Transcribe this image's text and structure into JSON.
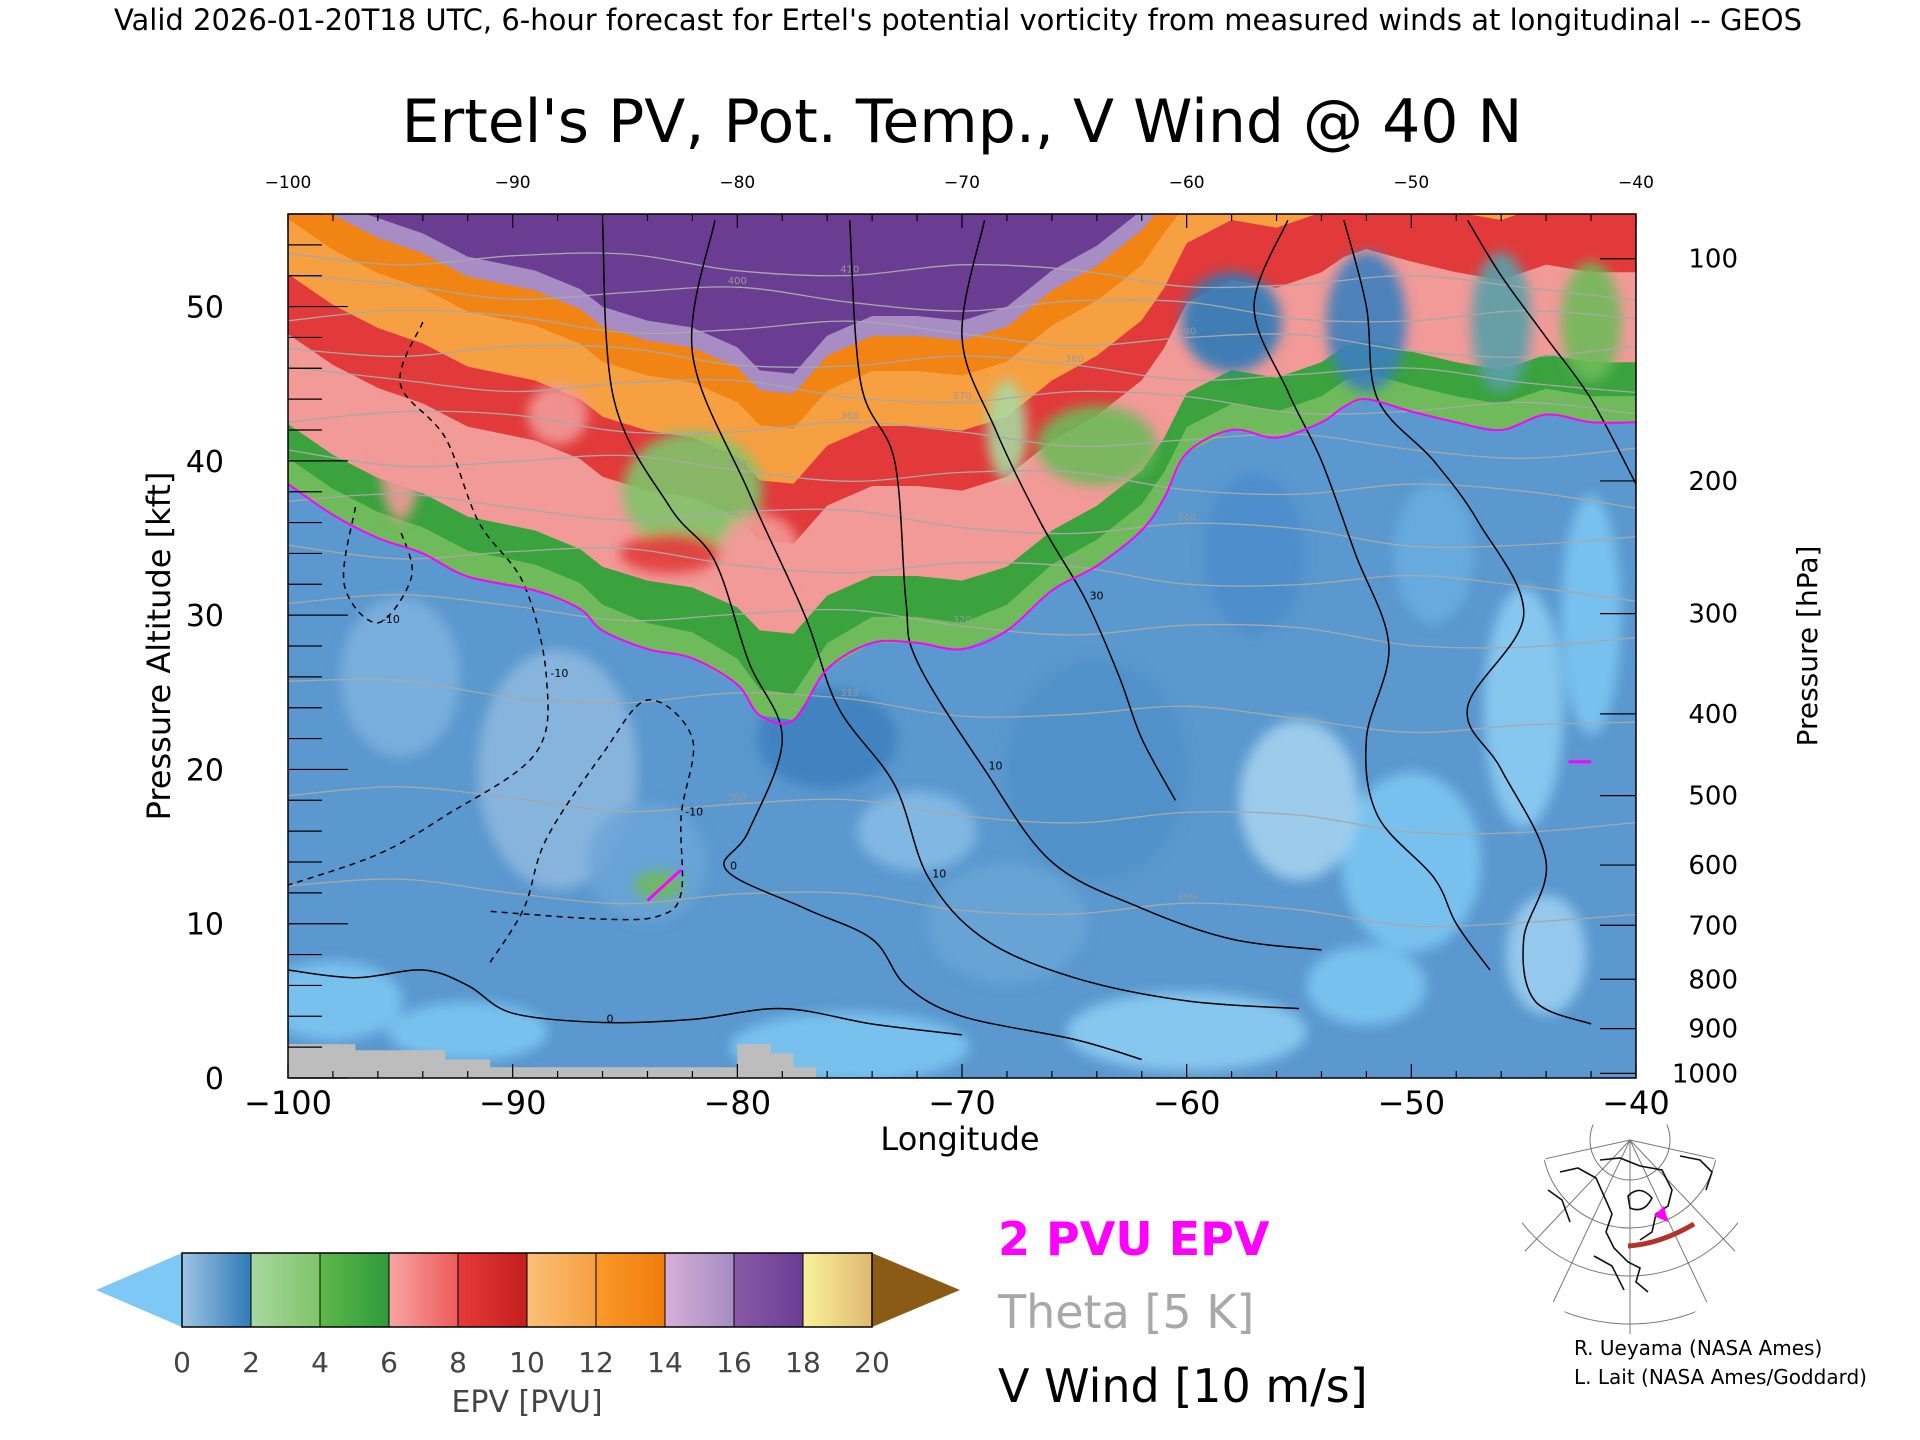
{
  "header": {
    "valid_line": "Valid 2026-01-20T18 UTC, 6-hour forecast for Ertel's potential vorticity from measured winds at longitudinal -- GEOS"
  },
  "chart_data": {
    "type": "heatmap",
    "title": "Ertel's PV, Pot. Temp., V Wind @ 40 N",
    "xlabel": "Longitude",
    "ylabel_left": "Pressure Altitude [kft]",
    "ylabel_right": "Pressure [hPa]",
    "xlim": [
      -100,
      -40
    ],
    "ylim": [
      0,
      56
    ],
    "x_ticks": [
      -100,
      -90,
      -80,
      -70,
      -60,
      -50,
      -40
    ],
    "x_tick_labels": [
      "−100",
      "−90",
      "−80",
      "−70",
      "−60",
      "−50",
      "−40"
    ],
    "x_top_tick_labels": [
      "−100",
      "−90",
      "−80",
      "−70",
      "−60",
      "−50",
      "−40"
    ],
    "y_left_ticks": [
      0,
      10,
      20,
      30,
      40,
      50
    ],
    "y_left_tick_labels": [
      "0",
      "10",
      "20",
      "30",
      "40",
      "50"
    ],
    "y_right_ticks": [
      {
        "label": "100",
        "kft": 53.1
      },
      {
        "label": "200",
        "kft": 38.7
      },
      {
        "label": "300",
        "kft": 30.1
      },
      {
        "label": "400",
        "kft": 23.6
      },
      {
        "label": "500",
        "kft": 18.3
      },
      {
        "label": "600",
        "kft": 13.8
      },
      {
        "label": "700",
        "kft": 9.9
      },
      {
        "label": "800",
        "kft": 6.4
      },
      {
        "label": "900",
        "kft": 3.2
      },
      {
        "label": "1000",
        "kft": 0.3
      }
    ],
    "colorbar": {
      "label": "EPV [PVU]",
      "ticks": [
        "0",
        "2",
        "4",
        "6",
        "8",
        "10",
        "12",
        "14",
        "16",
        "18",
        "20"
      ],
      "min_color": "#7ec8f5",
      "max_color": "#8b5a14",
      "bins": [
        {
          "from": 0,
          "to": 2,
          "colors": [
            "#9fc4e3",
            "#2f7ab8"
          ]
        },
        {
          "from": 2,
          "to": 4,
          "colors": [
            "#a8d8a0",
            "#7fc46a"
          ]
        },
        {
          "from": 4,
          "to": 6,
          "colors": [
            "#5fb84a",
            "#2e9a3a"
          ]
        },
        {
          "from": 6,
          "to": 8,
          "colors": [
            "#f7a6a3",
            "#ee5a5a"
          ]
        },
        {
          "from": 8,
          "to": 10,
          "colors": [
            "#e63a3a",
            "#c41e1e"
          ]
        },
        {
          "from": 10,
          "to": 12,
          "colors": [
            "#fbc078",
            "#f7a042"
          ]
        },
        {
          "from": 12,
          "to": 14,
          "colors": [
            "#fb9a2a",
            "#f07c0c"
          ]
        },
        {
          "from": 14,
          "to": 16,
          "colors": [
            "#d6b0d8",
            "#a68cc4"
          ]
        },
        {
          "from": 16,
          "to": 18,
          "colors": [
            "#8a5aa8",
            "#6a3c92"
          ]
        },
        {
          "from": 18,
          "to": 20,
          "colors": [
            "#f8f29a",
            "#e0b870"
          ]
        }
      ]
    },
    "legend": [
      {
        "label": "2 PVU EPV",
        "color": "#ff00ff"
      },
      {
        "label": "Theta [5 K]",
        "color": "#a8a8a8"
      },
      {
        "label": "V Wind [10 m/s]",
        "color": "#000000"
      }
    ],
    "fields": {
      "tropopause_2pvu": [
        [
          -100,
          38.5
        ],
        [
          -98,
          36.5
        ],
        [
          -96,
          35
        ],
        [
          -94,
          34
        ],
        [
          -92,
          32.5
        ],
        [
          -89,
          31.6
        ],
        [
          -87,
          30.4
        ],
        [
          -86,
          29
        ],
        [
          -84,
          27.8
        ],
        [
          -82,
          27.2
        ],
        [
          -80,
          25.5
        ],
        [
          -79,
          23.5
        ],
        [
          -77.5,
          23.2
        ],
        [
          -76,
          26.5
        ],
        [
          -74,
          28.2
        ],
        [
          -72,
          28.2
        ],
        [
          -70,
          27.8
        ],
        [
          -68,
          29
        ],
        [
          -66,
          31.6
        ],
        [
          -64,
          33.2
        ],
        [
          -62,
          35.5
        ],
        [
          -61,
          37.6
        ],
        [
          -60,
          40.5
        ],
        [
          -58,
          42
        ],
        [
          -56,
          41.5
        ],
        [
          -54,
          42.5
        ],
        [
          -53,
          43.5
        ],
        [
          -52,
          44
        ],
        [
          -50,
          43.2
        ],
        [
          -48,
          42.5
        ],
        [
          -46,
          42
        ],
        [
          -44,
          43
        ],
        [
          -42,
          42.5
        ],
        [
          -40,
          42.5
        ]
      ],
      "theta_levels": [
        {
          "label": "290",
          "y_left": 12.5,
          "y_right": 10.0
        },
        {
          "label": "300",
          "y_left": 18.5,
          "y_right": 16.0
        },
        {
          "label": "310",
          "y_left": 25.5,
          "y_right": 22.5
        },
        {
          "label": "320",
          "y_left": 31.0,
          "y_right": 28.0
        },
        {
          "label": "330",
          "y_left": 34.5,
          "y_right": 31.5
        },
        {
          "label": "340",
          "y_left": 37.5,
          "y_right": 34.5
        },
        {
          "label": "350",
          "y_left": 40.5,
          "y_right": 37.5
        },
        {
          "label": "360",
          "y_left": 43.0,
          "y_right": 40.5
        },
        {
          "label": "370",
          "y_left": 45.5,
          "y_right": 43.0
        },
        {
          "label": "380",
          "y_left": 47.5,
          "y_right": 45.0
        },
        {
          "label": "390",
          "y_left": 49.5,
          "y_right": 47.0
        },
        {
          "label": "400",
          "y_left": 51.5,
          "y_right": 49.0
        },
        {
          "label": "410",
          "y_left": 53.5,
          "y_right": 51.0
        }
      ],
      "v_wind_contours": [
        {
          "label": "0",
          "dash": false,
          "points": [
            [
              -86,
              55.6
            ],
            [
              -85.5,
              44
            ],
            [
              -83,
              37
            ],
            [
              -81,
              33.5
            ],
            [
              -79.5,
              27
            ],
            [
              -78,
              22
            ],
            [
              -79.5,
              16
            ],
            [
              -80.5,
              13.5
            ],
            [
              -77,
              11
            ],
            [
              -74,
              9
            ],
            [
              -72.5,
              6
            ],
            [
              -70,
              4
            ],
            [
              -65,
              2.5
            ],
            [
              -62,
              1.2
            ]
          ]
        },
        {
          "label": "10",
          "dash": false,
          "points": [
            [
              -81,
              55.6
            ],
            [
              -82,
              47
            ],
            [
              -79.5,
              38
            ],
            [
              -77,
              30
            ],
            [
              -75.5,
              24
            ],
            [
              -73,
              19
            ],
            [
              -71.5,
              13
            ],
            [
              -69,
              9
            ],
            [
              -65,
              6.5
            ],
            [
              -60,
              5
            ],
            [
              -55,
              4.5
            ]
          ]
        },
        {
          "label": "10",
          "dash": false,
          "points": [
            [
              -75,
              55.6
            ],
            [
              -74.5,
              45
            ],
            [
              -73,
              40
            ],
            [
              -72.5,
              31
            ],
            [
              -72,
              27
            ],
            [
              -69,
              20
            ],
            [
              -66,
              14
            ],
            [
              -62,
              11
            ],
            [
              -58,
              9
            ],
            [
              -54,
              8.3
            ]
          ]
        },
        {
          "label": "30",
          "dash": false,
          "points": [
            [
              -69,
              55.6
            ],
            [
              -70,
              48
            ],
            [
              -68.5,
              42
            ],
            [
              -66.5,
              36
            ],
            [
              -64.5,
              31
            ],
            [
              -63,
              26
            ],
            [
              -62,
              22
            ],
            [
              -60.5,
              18
            ]
          ]
        },
        {
          "label": "",
          "dash": false,
          "points": [
            [
              -55.5,
              55.6
            ],
            [
              -57,
              50
            ],
            [
              -55.5,
              44.5
            ],
            [
              -54,
              40
            ],
            [
              -52.5,
              34
            ],
            [
              -51,
              28
            ],
            [
              -52,
              22
            ],
            [
              -51.5,
              17
            ],
            [
              -49,
              13
            ],
            [
              -48,
              10
            ],
            [
              -46.5,
              7
            ]
          ]
        },
        {
          "label": "",
          "dash": false,
          "points": [
            [
              -53,
              55.6
            ],
            [
              -52,
              50
            ],
            [
              -51.5,
              44
            ],
            [
              -49,
              40
            ],
            [
              -47,
              36
            ],
            [
              -45,
              30
            ],
            [
              -47.5,
              24
            ],
            [
              -46,
              20
            ],
            [
              -44,
              14
            ],
            [
              -45,
              9
            ],
            [
              -44.5,
              5
            ],
            [
              -42,
              3.5
            ]
          ]
        },
        {
          "label": "",
          "dash": false,
          "points": [
            [
              -47.5,
              55.6
            ],
            [
              -46,
              52
            ],
            [
              -44,
              48
            ],
            [
              -42,
              44
            ],
            [
              -40,
              38.5
            ]
          ]
        },
        {
          "label": "-10",
          "dash": true,
          "points": [
            [
              -94,
              49
            ],
            [
              -95,
              45
            ],
            [
              -93,
              41.5
            ],
            [
              -91.5,
              36
            ],
            [
              -89.5,
              32
            ],
            [
              -88.5,
              26
            ],
            [
              -89,
              21
            ],
            [
              -93,
              17
            ],
            [
              -96,
              14.5
            ],
            [
              -100,
              12.5
            ]
          ]
        },
        {
          "label": "-10",
          "dash": true,
          "points": [
            [
              -91,
              7.5
            ],
            [
              -89.5,
              11
            ],
            [
              -88.5,
              15.5
            ],
            [
              -86,
              21
            ],
            [
              -84,
              24.5
            ],
            [
              -82,
              22
            ],
            [
              -82.5,
              17
            ],
            [
              -82.5,
              12
            ],
            [
              -83.5,
              10.5
            ],
            [
              -86,
              10.3
            ],
            [
              -91,
              10.8
            ]
          ]
        },
        {
          "label": "-10",
          "dash": true,
          "points": [
            [
              -97,
              37
            ],
            [
              -97.5,
              32
            ],
            [
              -96,
              29.5
            ],
            [
              -94.5,
              32.5
            ],
            [
              -95,
              35.5
            ]
          ]
        },
        {
          "label": "0",
          "dash": false,
          "points": [
            [
              -100,
              7
            ],
            [
              -97,
              6.5
            ],
            [
              -94,
              7
            ],
            [
              -92,
              6
            ],
            [
              -90,
              4.2
            ],
            [
              -86,
              3.6
            ],
            [
              -82,
              3.8
            ],
            [
              -78,
              4.5
            ],
            [
              -74,
              3.5
            ],
            [
              -70,
              2.8
            ]
          ]
        }
      ]
    }
  },
  "credits": {
    "line1": "R. Ueyama (NASA Ames)",
    "line2": "L. Lait (NASA Ames/Goddard)"
  },
  "colors": {
    "tropopause": "#ff00ff",
    "theta": "#a8a8a8",
    "v_wind": "#000000",
    "ground": "#bdbdbd",
    "path_arc": "#b5322a"
  }
}
